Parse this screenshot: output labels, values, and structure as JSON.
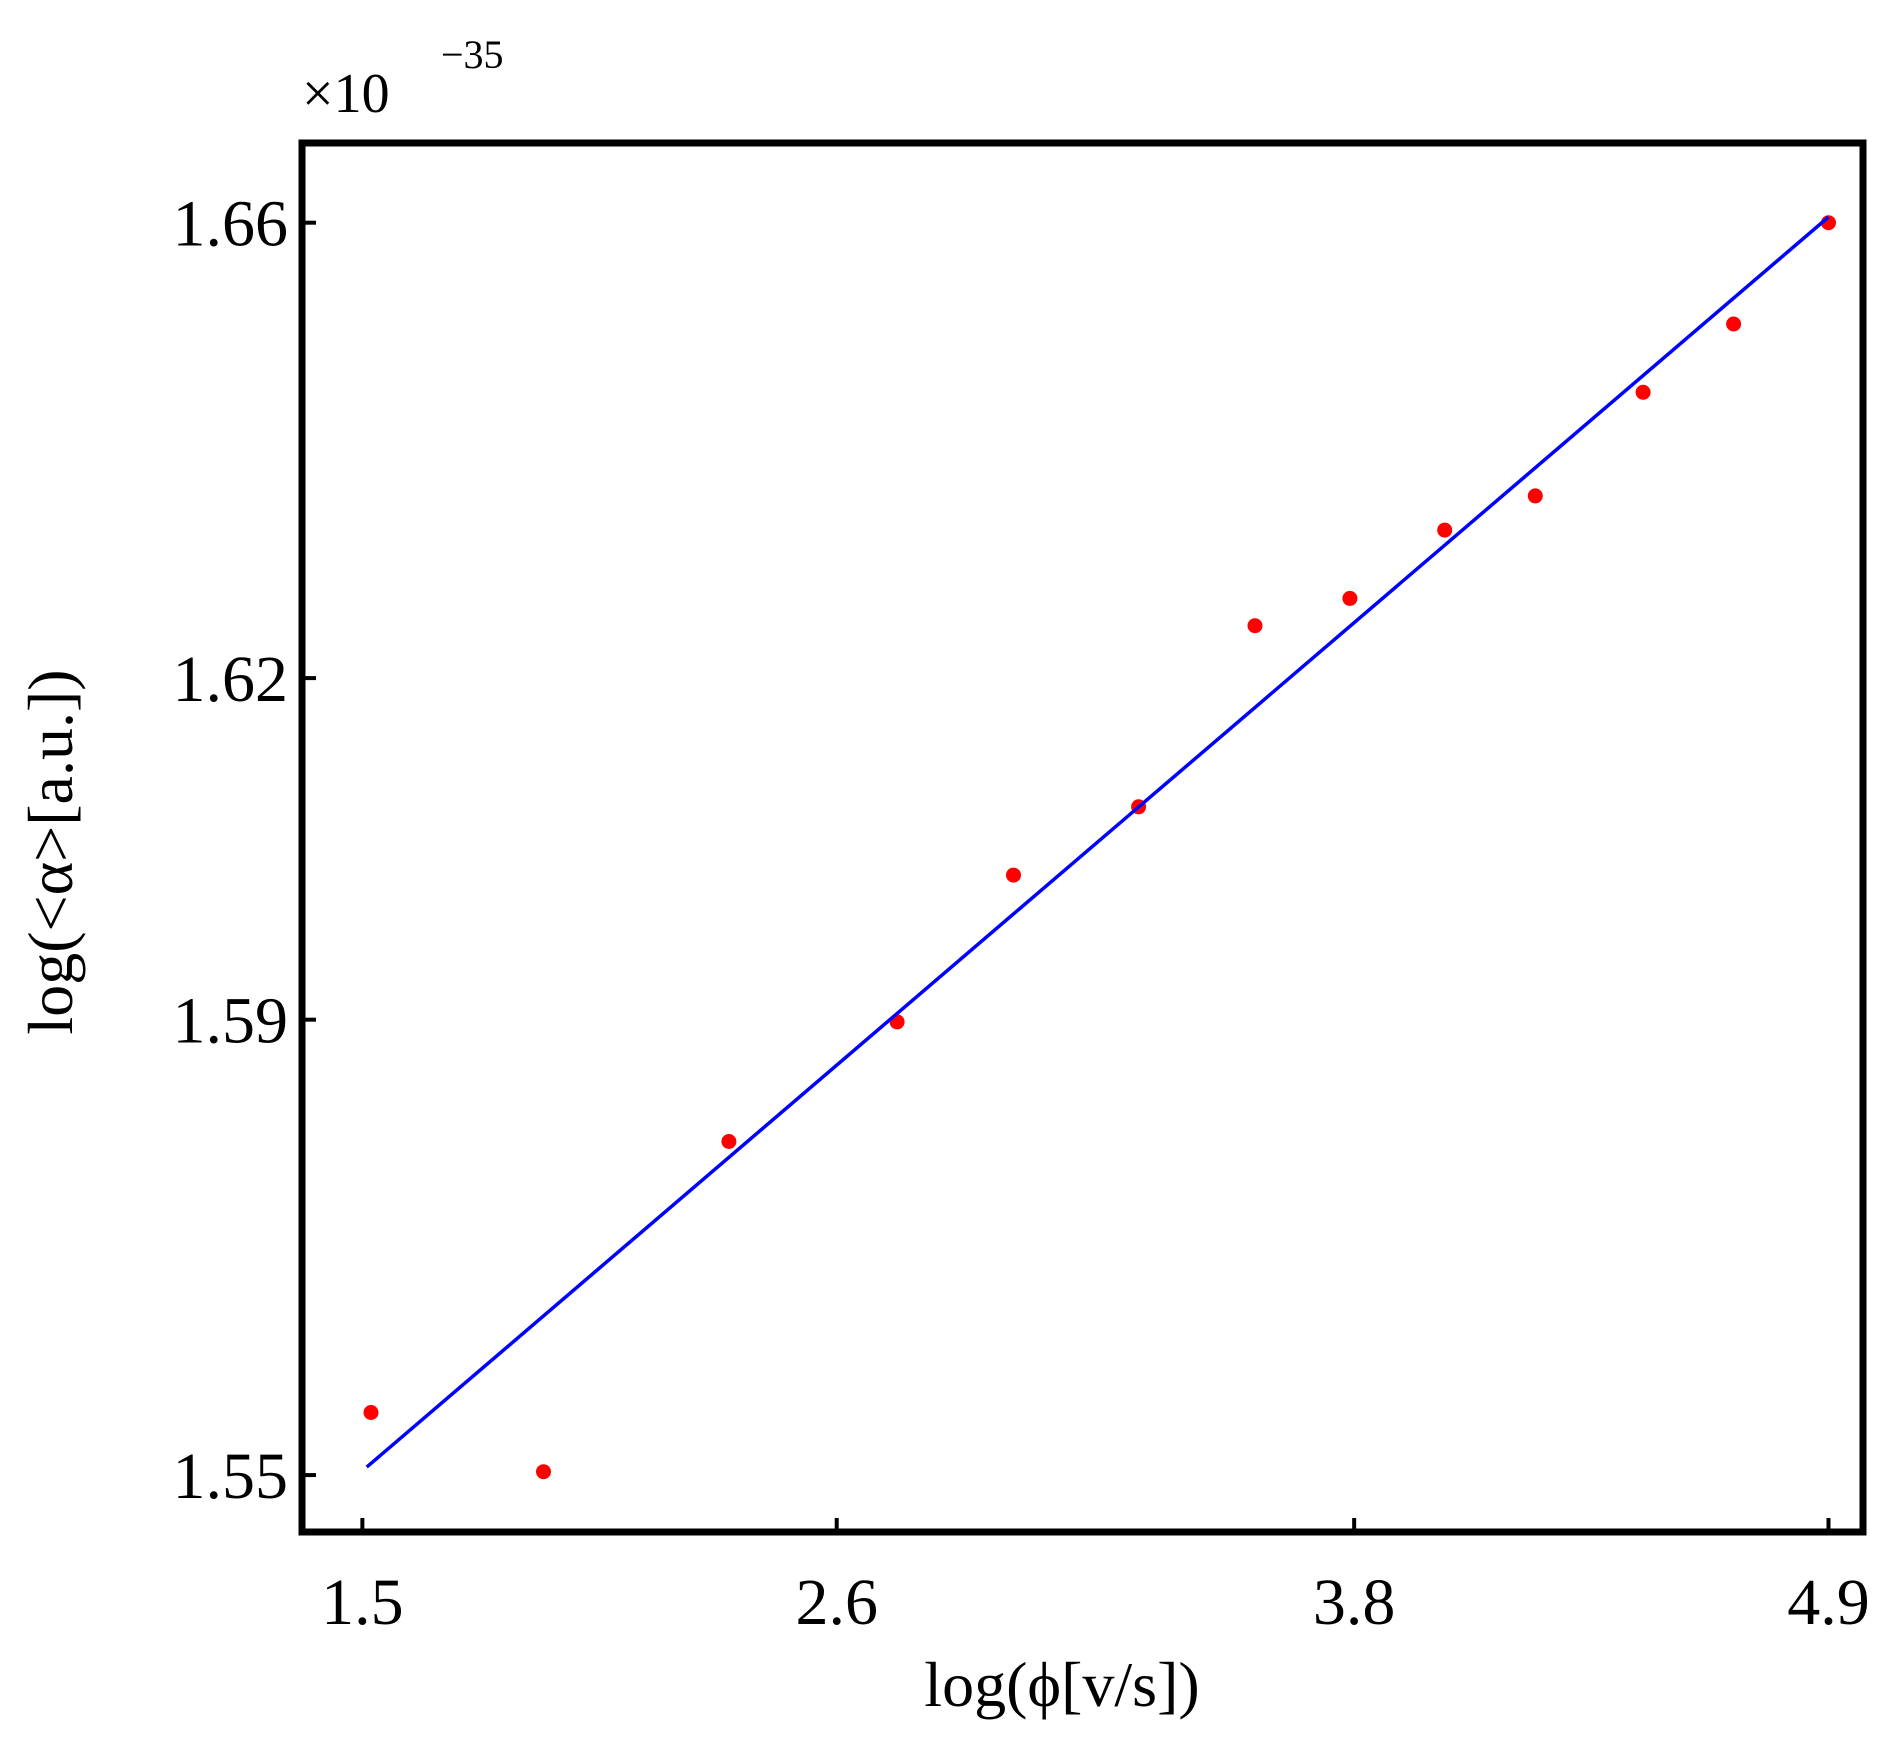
{
  "chart_data": {
    "type": "scatter",
    "title": "",
    "xlabel": "log(ϕ[v/s])",
    "ylabel": "log(<α>[a.u.])",
    "y_multiplier": "×10",
    "y_multiplier_exponent": "−35",
    "xlim": [
      1.36,
      4.98
    ],
    "ylim": [
      1.545,
      1.667
    ],
    "x_ticks": [
      {
        "value": 1.5,
        "label": "1.5"
      },
      {
        "value": 2.6,
        "label": "2.6"
      },
      {
        "value": 3.8,
        "label": "3.8"
      },
      {
        "value": 4.9,
        "label": "4.9"
      }
    ],
    "y_ticks": [
      {
        "value": 1.55,
        "label": "1.55"
      },
      {
        "value": 1.59,
        "label": "1.59"
      },
      {
        "value": 1.62,
        "label": "1.62"
      },
      {
        "value": 1.66,
        "label": "1.66"
      }
    ],
    "grid": false,
    "series": [
      {
        "kind": "points",
        "color": "#ff0000",
        "x": [
          1.52,
          1.92,
          2.35,
          2.74,
          3.01,
          3.3,
          3.57,
          3.79,
          4.01,
          4.22,
          4.47,
          4.68,
          4.9
        ],
        "y": [
          1.5555,
          1.5503,
          1.5793,
          1.5898,
          1.6027,
          1.6087,
          1.6246,
          1.627,
          1.633,
          1.636,
          1.6451,
          1.6511,
          1.66
        ]
      },
      {
        "kind": "fit-line",
        "color": "#0000ff",
        "x": [
          1.51,
          4.9
        ],
        "y": [
          1.5507,
          1.6605
        ]
      }
    ]
  }
}
